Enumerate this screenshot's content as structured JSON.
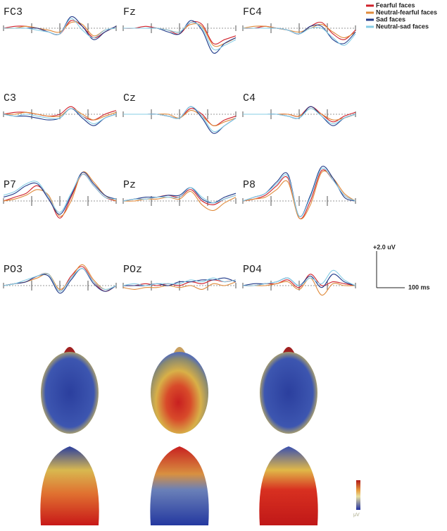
{
  "chart_data": [
    {
      "type": "line",
      "title": "FC3",
      "series": [
        {
          "values": [
            0,
            0.1,
            0.1,
            0,
            -0.2,
            -0.3,
            0.4,
            0.1,
            -0.5,
            -0.2,
            0.1
          ]
        },
        {
          "values": [
            0,
            0,
            0.1,
            0,
            -0.1,
            -0.2,
            0.3,
            0.2,
            -0.4,
            -0.1,
            0
          ]
        },
        {
          "values": [
            0,
            0,
            0,
            0,
            -0.2,
            -0.3,
            0.6,
            0.1,
            -0.6,
            -0.2,
            0.1
          ]
        },
        {
          "values": [
            0,
            0,
            0,
            -0.1,
            -0.2,
            -0.3,
            0.5,
            -0.1,
            -0.5,
            -0.1,
            0
          ]
        }
      ]
    },
    {
      "type": "line",
      "title": "Fz",
      "series": [
        {
          "values": [
            0,
            0,
            0.1,
            0,
            -0.1,
            -0.3,
            0.3,
            0.2,
            -0.8,
            -0.6,
            -0.4
          ]
        },
        {
          "values": [
            0,
            0,
            0,
            0,
            -0.1,
            -0.2,
            0.2,
            0.1,
            -0.9,
            -0.8,
            -0.5
          ]
        },
        {
          "values": [
            0,
            0,
            0,
            0,
            -0.2,
            -0.3,
            0.4,
            -0.1,
            -1.3,
            -0.8,
            -0.5
          ]
        },
        {
          "values": [
            0,
            0,
            0,
            0,
            -0.1,
            -0.2,
            0.3,
            0,
            -1.1,
            -0.9,
            -0.6
          ]
        }
      ]
    },
    {
      "type": "line",
      "title": "FC4",
      "series": [
        {
          "values": [
            0,
            0,
            0.1,
            0,
            -0.1,
            -0.3,
            0.1,
            0.3,
            -0.3,
            -0.6,
            -0.1
          ]
        },
        {
          "values": [
            0,
            0.1,
            0.1,
            0,
            -0.1,
            -0.2,
            0,
            0.2,
            -0.2,
            -0.5,
            -0.2
          ]
        },
        {
          "values": [
            0,
            0,
            0,
            0,
            -0.1,
            -0.3,
            0.1,
            0.1,
            -0.6,
            -0.8,
            -0.2
          ]
        },
        {
          "values": [
            0,
            0,
            0,
            0,
            -0.1,
            -0.3,
            0,
            0,
            -0.5,
            -0.9,
            -0.3
          ]
        }
      ]
    },
    {
      "type": "line",
      "title": "C3",
      "series": [
        {
          "values": [
            0,
            0.1,
            0.1,
            0,
            -0.1,
            0,
            0.4,
            -0.1,
            -0.3,
            0,
            0.2
          ]
        },
        {
          "values": [
            0,
            0,
            0.1,
            0,
            -0.1,
            -0.1,
            0.3,
            0,
            -0.3,
            -0.1,
            0.1
          ]
        },
        {
          "values": [
            0,
            -0.1,
            -0.1,
            -0.2,
            -0.3,
            -0.2,
            0.3,
            -0.2,
            -0.6,
            -0.2,
            0
          ]
        },
        {
          "values": [
            0,
            -0.1,
            0,
            -0.1,
            -0.2,
            -0.2,
            0.3,
            -0.1,
            -0.5,
            -0.2,
            0
          ]
        }
      ]
    },
    {
      "type": "line",
      "title": "Cz",
      "series": [
        {
          "values": [
            0,
            0,
            0,
            0,
            -0.1,
            -0.2,
            0.3,
            0,
            -0.6,
            -0.3,
            -0.1
          ]
        },
        {
          "values": [
            0,
            0,
            0,
            0,
            0,
            -0.2,
            0.2,
            -0.1,
            -0.6,
            -0.4,
            -0.2
          ]
        },
        {
          "values": [
            0,
            0,
            0,
            0,
            -0.1,
            -0.2,
            0.4,
            -0.2,
            -1.0,
            -0.6,
            -0.2
          ]
        },
        {
          "values": [
            0,
            0,
            0,
            0,
            -0.1,
            -0.2,
            0.4,
            -0.1,
            -0.9,
            -0.6,
            -0.2
          ]
        }
      ]
    },
    {
      "type": "line",
      "title": "C4",
      "series": [
        {
          "values": [
            0,
            0,
            0,
            0,
            0,
            -0.1,
            0.4,
            0,
            -0.4,
            -0.1,
            0.1
          ]
        },
        {
          "values": [
            0,
            0,
            0,
            0,
            0,
            -0.1,
            0.3,
            0,
            -0.3,
            -0.2,
            0
          ]
        },
        {
          "values": [
            0,
            0,
            0,
            0,
            -0.1,
            -0.2,
            0.4,
            -0.1,
            -0.6,
            -0.2,
            0
          ]
        },
        {
          "values": [
            0,
            0,
            0,
            0,
            -0.1,
            -0.2,
            0.3,
            -0.1,
            -0.5,
            -0.2,
            0
          ]
        }
      ]
    },
    {
      "type": "line",
      "title": "P7",
      "series": [
        {
          "values": [
            0,
            0.2,
            0.4,
            0.8,
            0.2,
            -0.9,
            0.2,
            1.4,
            0.8,
            0.2,
            0
          ]
        },
        {
          "values": [
            0,
            0.1,
            0.3,
            0.6,
            0.3,
            -0.8,
            0,
            1.5,
            1.0,
            0.3,
            0
          ]
        },
        {
          "values": [
            0.2,
            0.4,
            0.8,
            0.9,
            0.1,
            -0.7,
            0.3,
            1.5,
            0.9,
            0.3,
            0.1
          ]
        },
        {
          "values": [
            0.3,
            0.5,
            0.9,
            1.0,
            0.2,
            -0.6,
            0.4,
            1.4,
            0.8,
            0.2,
            0.1
          ]
        }
      ]
    },
    {
      "type": "line",
      "title": "Pz",
      "series": [
        {
          "values": [
            0,
            0.1,
            0.1,
            0.2,
            0.3,
            0.2,
            0.6,
            0,
            -0.2,
            0.1,
            0.3
          ]
        },
        {
          "values": [
            0,
            0,
            0.1,
            0.1,
            0.2,
            0.1,
            0.5,
            -0.2,
            -0.5,
            -0.1,
            0.2
          ]
        },
        {
          "values": [
            0,
            0.1,
            0.2,
            0.2,
            0.3,
            0.3,
            0.7,
            0.1,
            -0.1,
            0.2,
            0.4
          ]
        },
        {
          "values": [
            0,
            0.1,
            0.1,
            0.2,
            0.2,
            0.2,
            0.7,
            0.2,
            -0.1,
            0.1,
            0.3
          ]
        }
      ]
    },
    {
      "type": "line",
      "title": "P8",
      "series": [
        {
          "values": [
            0,
            0.1,
            0.3,
            0.8,
            1.2,
            -0.9,
            0,
            1.6,
            1.1,
            0.3,
            0
          ]
        },
        {
          "values": [
            0,
            0.1,
            0.2,
            0.6,
            1.0,
            -0.9,
            -0.2,
            1.5,
            1.2,
            0.4,
            0
          ]
        },
        {
          "values": [
            0,
            0.2,
            0.4,
            1.0,
            1.4,
            -0.8,
            0.3,
            1.8,
            1.2,
            0.2,
            0
          ]
        },
        {
          "values": [
            0,
            0.2,
            0.4,
            0.9,
            1.3,
            -0.8,
            0.2,
            1.7,
            1.1,
            0.3,
            0
          ]
        }
      ]
    },
    {
      "type": "line",
      "title": "PO3",
      "series": [
        {
          "values": [
            0,
            0.1,
            0.2,
            0.5,
            0.6,
            -0.3,
            0.5,
            1.0,
            0.2,
            -0.3,
            0
          ]
        },
        {
          "values": [
            0,
            0.1,
            0.2,
            0.4,
            0.6,
            -0.2,
            0.4,
            1.1,
            0.3,
            -0.2,
            0
          ]
        },
        {
          "values": [
            0,
            0.1,
            0.2,
            0.5,
            0.5,
            -0.4,
            0.3,
            0.9,
            0.1,
            -0.3,
            0
          ]
        },
        {
          "values": [
            0,
            0.1,
            0.3,
            0.5,
            0.6,
            -0.3,
            0.4,
            0.9,
            0.2,
            -0.2,
            0
          ]
        }
      ]
    },
    {
      "type": "line",
      "title": "POz",
      "series": [
        {
          "values": [
            0,
            0,
            0.1,
            0,
            0.1,
            0,
            0.2,
            0.1,
            0.3,
            0.2,
            0.3
          ]
        },
        {
          "values": [
            -0.1,
            -0.2,
            -0.1,
            -0.1,
            0,
            -0.1,
            0,
            -0.2,
            0.1,
            0,
            0.2
          ]
        },
        {
          "values": [
            0,
            0,
            0,
            0.1,
            0,
            0.2,
            0.2,
            0.3,
            0.3,
            0.4,
            0.2
          ]
        },
        {
          "values": [
            0,
            0.1,
            0,
            0.1,
            0.1,
            0.1,
            0.3,
            0.2,
            0.4,
            0.2,
            0.3
          ]
        }
      ]
    },
    {
      "type": "line",
      "title": "PO4",
      "series": [
        {
          "values": [
            0,
            0,
            0.1,
            0.1,
            0.3,
            -0.1,
            0.6,
            0,
            0.2,
            0.1,
            0
          ]
        },
        {
          "values": [
            0,
            0,
            0,
            0.1,
            0.2,
            -0.2,
            0.4,
            -0.5,
            0.1,
            0,
            0
          ]
        },
        {
          "values": [
            0,
            0.1,
            0.1,
            0.2,
            0.4,
            0,
            0.5,
            -0.1,
            0.6,
            0.2,
            0
          ]
        },
        {
          "values": [
            0,
            0,
            0.1,
            0.2,
            0.4,
            0,
            0.4,
            0.1,
            0.8,
            0.3,
            0
          ]
        }
      ]
    }
  ],
  "legend": [
    {
      "name": "Fearful faces",
      "color": "#d0202a"
    },
    {
      "name": "Neutral-fearful faces",
      "color": "#e08a3a"
    },
    {
      "name": "Sad faces",
      "color": "#1f3a8a"
    },
    {
      "name": "Neutral-sad faces",
      "color": "#86cde6"
    }
  ],
  "scale_bar": {
    "y_label": "+2.0 uV",
    "x_label": "100 ms"
  },
  "colorbar_unit": "μV"
}
